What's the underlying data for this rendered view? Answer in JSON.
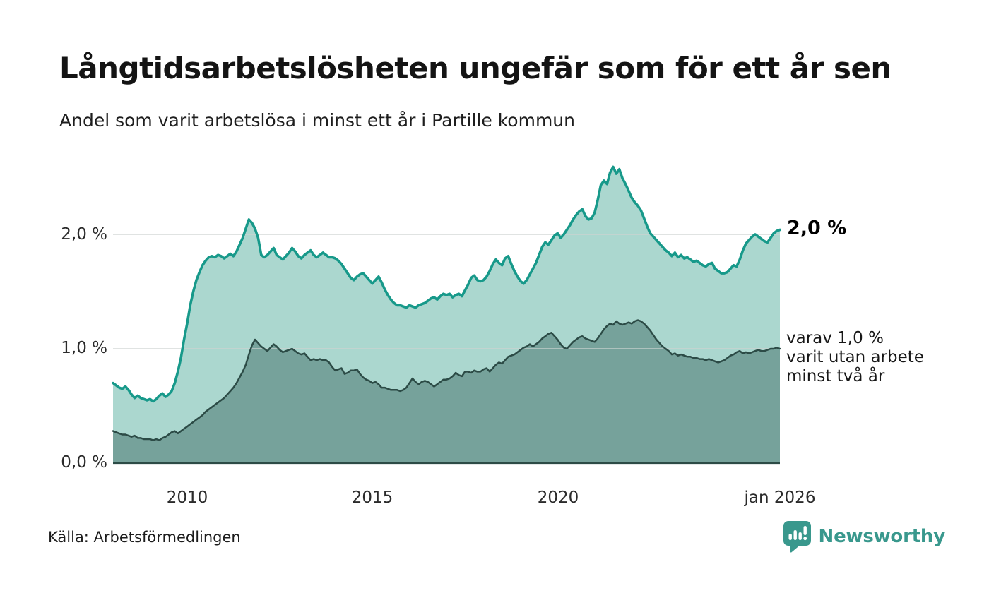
{
  "header": {
    "title": "Långtidsarbetslösheten ungefär som för ett år sen",
    "subtitle": "Andel som varit arbetslösa i minst ett år i Partille kommun"
  },
  "chart": {
    "y_axis": {
      "ticks": [
        {
          "label": "2,0 %",
          "value": 2.0
        },
        {
          "label": "1,0 %",
          "value": 1.0
        },
        {
          "label": "0,0 %",
          "value": 0.0
        }
      ]
    },
    "x_axis": {
      "ticks": [
        {
          "label": "2010",
          "year": 2010
        },
        {
          "label": "2015",
          "year": 2015
        },
        {
          "label": "2020",
          "year": 2020
        },
        {
          "label": "jan 2026",
          "year": 2026
        }
      ]
    },
    "end_label": "2,0 %",
    "annotation": {
      "lines": [
        "varav 1,0 %",
        "varit utan arbete",
        "minst två år"
      ]
    }
  },
  "chart_data": {
    "type": "area",
    "title": "Långtidsarbetslösheten ungefär som för ett år sen",
    "subtitle": "Andel som varit arbetslösa i minst ett år i Partille kommun",
    "unit": "%",
    "x_start": 2008.0,
    "x_end": 2026.0,
    "sampling": "monthly",
    "ylim": [
      0,
      2.63
    ],
    "y_ticks": [
      0,
      1,
      2
    ],
    "grid": true,
    "colors": {
      "grid": "#cfd4d2",
      "baseline": "#2c4b46"
    },
    "series": [
      {
        "name": "Andel arbetslösa minst ett år",
        "line_color": "#17998a",
        "fill_color": "#abd7cf",
        "end_value": 2.0,
        "end_value_label": "2,0 %",
        "values": [
          0.7,
          0.68,
          0.66,
          0.65,
          0.67,
          0.64,
          0.6,
          0.57,
          0.59,
          0.57,
          0.56,
          0.55,
          0.56,
          0.54,
          0.56,
          0.59,
          0.61,
          0.58,
          0.6,
          0.63,
          0.7,
          0.8,
          0.92,
          1.08,
          1.22,
          1.38,
          1.5,
          1.6,
          1.67,
          1.73,
          1.77,
          1.8,
          1.81,
          1.8,
          1.82,
          1.81,
          1.79,
          1.81,
          1.83,
          1.81,
          1.85,
          1.91,
          1.97,
          2.05,
          2.13,
          2.1,
          2.05,
          1.97,
          1.82,
          1.8,
          1.82,
          1.85,
          1.88,
          1.82,
          1.8,
          1.78,
          1.81,
          1.84,
          1.88,
          1.85,
          1.81,
          1.79,
          1.82,
          1.84,
          1.86,
          1.82,
          1.8,
          1.82,
          1.84,
          1.82,
          1.8,
          1.8,
          1.79,
          1.77,
          1.74,
          1.7,
          1.66,
          1.62,
          1.6,
          1.63,
          1.65,
          1.66,
          1.63,
          1.6,
          1.57,
          1.6,
          1.63,
          1.58,
          1.52,
          1.47,
          1.43,
          1.4,
          1.38,
          1.38,
          1.37,
          1.36,
          1.38,
          1.37,
          1.36,
          1.38,
          1.39,
          1.4,
          1.42,
          1.44,
          1.45,
          1.43,
          1.46,
          1.48,
          1.47,
          1.48,
          1.45,
          1.47,
          1.48,
          1.46,
          1.51,
          1.56,
          1.62,
          1.64,
          1.6,
          1.59,
          1.6,
          1.63,
          1.68,
          1.74,
          1.78,
          1.75,
          1.73,
          1.79,
          1.81,
          1.74,
          1.68,
          1.63,
          1.59,
          1.57,
          1.6,
          1.65,
          1.7,
          1.75,
          1.82,
          1.89,
          1.93,
          1.91,
          1.95,
          1.99,
          2.01,
          1.97,
          2.0,
          2.04,
          2.08,
          2.13,
          2.17,
          2.2,
          2.22,
          2.16,
          2.13,
          2.14,
          2.19,
          2.3,
          2.43,
          2.47,
          2.44,
          2.54,
          2.59,
          2.53,
          2.57,
          2.49,
          2.44,
          2.38,
          2.32,
          2.28,
          2.25,
          2.21,
          2.14,
          2.07,
          2.01,
          1.98,
          1.95,
          1.92,
          1.89,
          1.86,
          1.84,
          1.81,
          1.84,
          1.8,
          1.82,
          1.79,
          1.8,
          1.78,
          1.76,
          1.77,
          1.75,
          1.73,
          1.72,
          1.74,
          1.75,
          1.7,
          1.68,
          1.66,
          1.66,
          1.67,
          1.7,
          1.73,
          1.72,
          1.78,
          1.86,
          1.92,
          1.95,
          1.98,
          2.0,
          1.98,
          1.96,
          1.94,
          1.93,
          1.97,
          2.01,
          2.03,
          2.04
        ]
      },
      {
        "name": "varav utan arbete minst två år",
        "line_color": "#2c4b46",
        "fill_color": "#76a29b",
        "end_value": 1.0,
        "end_value_label": "varav 1,0 % varit utan arbete minst två år",
        "values": [
          0.28,
          0.27,
          0.26,
          0.25,
          0.25,
          0.24,
          0.23,
          0.24,
          0.22,
          0.22,
          0.21,
          0.21,
          0.21,
          0.2,
          0.21,
          0.2,
          0.22,
          0.23,
          0.25,
          0.27,
          0.28,
          0.26,
          0.28,
          0.3,
          0.32,
          0.34,
          0.36,
          0.38,
          0.4,
          0.42,
          0.45,
          0.47,
          0.49,
          0.51,
          0.53,
          0.55,
          0.57,
          0.6,
          0.63,
          0.66,
          0.7,
          0.75,
          0.8,
          0.86,
          0.95,
          1.03,
          1.08,
          1.05,
          1.02,
          1.0,
          0.98,
          1.01,
          1.04,
          1.02,
          0.99,
          0.97,
          0.98,
          0.99,
          1.0,
          0.98,
          0.96,
          0.95,
          0.96,
          0.93,
          0.9,
          0.91,
          0.9,
          0.91,
          0.9,
          0.9,
          0.88,
          0.84,
          0.81,
          0.82,
          0.83,
          0.78,
          0.79,
          0.81,
          0.81,
          0.82,
          0.78,
          0.75,
          0.73,
          0.72,
          0.7,
          0.71,
          0.69,
          0.66,
          0.66,
          0.65,
          0.64,
          0.64,
          0.64,
          0.63,
          0.64,
          0.66,
          0.7,
          0.74,
          0.71,
          0.69,
          0.71,
          0.72,
          0.71,
          0.69,
          0.67,
          0.69,
          0.71,
          0.73,
          0.73,
          0.74,
          0.76,
          0.79,
          0.77,
          0.76,
          0.8,
          0.8,
          0.79,
          0.81,
          0.8,
          0.8,
          0.82,
          0.83,
          0.8,
          0.83,
          0.86,
          0.88,
          0.87,
          0.9,
          0.93,
          0.94,
          0.95,
          0.97,
          0.99,
          1.01,
          1.02,
          1.04,
          1.02,
          1.04,
          1.06,
          1.09,
          1.11,
          1.13,
          1.14,
          1.11,
          1.08,
          1.04,
          1.01,
          1.0,
          1.03,
          1.06,
          1.08,
          1.1,
          1.11,
          1.09,
          1.08,
          1.07,
          1.06,
          1.09,
          1.13,
          1.17,
          1.2,
          1.22,
          1.21,
          1.24,
          1.22,
          1.21,
          1.22,
          1.23,
          1.22,
          1.24,
          1.25,
          1.24,
          1.22,
          1.19,
          1.16,
          1.12,
          1.08,
          1.05,
          1.02,
          1.0,
          0.98,
          0.95,
          0.96,
          0.94,
          0.95,
          0.94,
          0.93,
          0.93,
          0.92,
          0.92,
          0.91,
          0.91,
          0.9,
          0.91,
          0.9,
          0.89,
          0.88,
          0.89,
          0.9,
          0.92,
          0.94,
          0.95,
          0.97,
          0.98,
          0.96,
          0.97,
          0.96,
          0.97,
          0.98,
          0.99,
          0.98,
          0.98,
          0.99,
          1.0,
          1.0,
          1.01,
          1.0
        ]
      }
    ]
  },
  "footer": {
    "source": "Källa: Arbetsförmedlingen",
    "brand": "Newsworthy",
    "brand_color": "#39988d"
  }
}
